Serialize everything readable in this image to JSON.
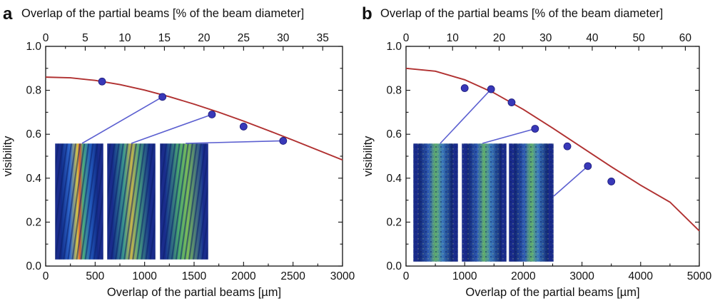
{
  "colors": {
    "curve": "#b03030",
    "point": "#3838b8",
    "connector": "#5b5fd0",
    "inset_bg": "#1a2c8c"
  },
  "chart_data": [
    {
      "type": "scatter",
      "panel_letter": "a",
      "xlabel": "Overlap of the partial beams [µm]",
      "ylabel": "visibility",
      "x2label": "Overlap of the partial beams [% of the beam diameter]",
      "xlim": [
        0,
        3000
      ],
      "ylim": [
        0.0,
        1.0
      ],
      "x2lim": [
        0,
        37.5
      ],
      "xticks": [
        "0",
        "500",
        "1000",
        "1500",
        "2000",
        "2500",
        "3000"
      ],
      "x2ticks": [
        "0",
        "5",
        "10",
        "15",
        "20",
        "25",
        "30",
        "35"
      ],
      "yticks": [
        "0.0",
        "0.2",
        "0.4",
        "0.6",
        "0.8",
        "1.0"
      ],
      "series": [
        {
          "kind": "points",
          "x": [
            570,
            1180,
            1680,
            2000,
            2400
          ],
          "y": [
            0.84,
            0.77,
            0.69,
            0.635,
            0.57
          ]
        },
        {
          "kind": "fit",
          "x": [
            0,
            250,
            500,
            750,
            1000,
            1250,
            1500,
            1750,
            2000,
            2250,
            2500,
            2750,
            3000
          ],
          "y": [
            0.86,
            0.857,
            0.845,
            0.826,
            0.801,
            0.771,
            0.737,
            0.7,
            0.66,
            0.617,
            0.573,
            0.528,
            0.483
          ]
        }
      ],
      "insets": [
        {
          "connects_to_x": 1180,
          "connects_to_y": 0.77,
          "style": "fine-red"
        },
        {
          "connects_to_x": 1680,
          "connects_to_y": 0.69,
          "style": "mixed"
        },
        {
          "connects_to_x": 2400,
          "connects_to_y": 0.57,
          "style": "green"
        }
      ]
    },
    {
      "type": "scatter",
      "panel_letter": "b",
      "xlabel": "Overlap of the partial beams [µm]",
      "ylabel": "visibility",
      "x2label": "Overlap of the partial beams [% of the beam diameter]",
      "xlim": [
        0,
        5000
      ],
      "ylim": [
        0.0,
        1.0
      ],
      "x2lim": [
        0,
        63
      ],
      "xticks": [
        "0",
        "1000",
        "2000",
        "3000",
        "4000",
        "5000"
      ],
      "x2ticks": [
        "0",
        "10",
        "20",
        "30",
        "40",
        "50",
        "60"
      ],
      "yticks": [
        "0.0",
        "0.2",
        "0.4",
        "0.6",
        "0.8",
        "1.0"
      ],
      "series": [
        {
          "kind": "points",
          "x": [
            1000,
            1450,
            1800,
            2200,
            2750,
            3100,
            3500
          ],
          "y": [
            0.81,
            0.805,
            0.745,
            0.625,
            0.545,
            0.455,
            0.385
          ]
        },
        {
          "kind": "fit",
          "x": [
            0,
            500,
            1000,
            1500,
            2000,
            2500,
            3000,
            3500,
            4000,
            4500,
            5000
          ],
          "y": [
            0.9,
            0.887,
            0.848,
            0.788,
            0.713,
            0.628,
            0.54,
            0.452,
            0.368,
            0.291,
            0.16
          ]
        }
      ],
      "insets": [
        {
          "connects_to_x": 1450,
          "connects_to_y": 0.805,
          "style": "speckle"
        },
        {
          "connects_to_x": 2200,
          "connects_to_y": 0.625,
          "style": "speckle"
        },
        {
          "connects_to_x": 3100,
          "connects_to_y": 0.455,
          "style": "speckle"
        }
      ]
    }
  ]
}
